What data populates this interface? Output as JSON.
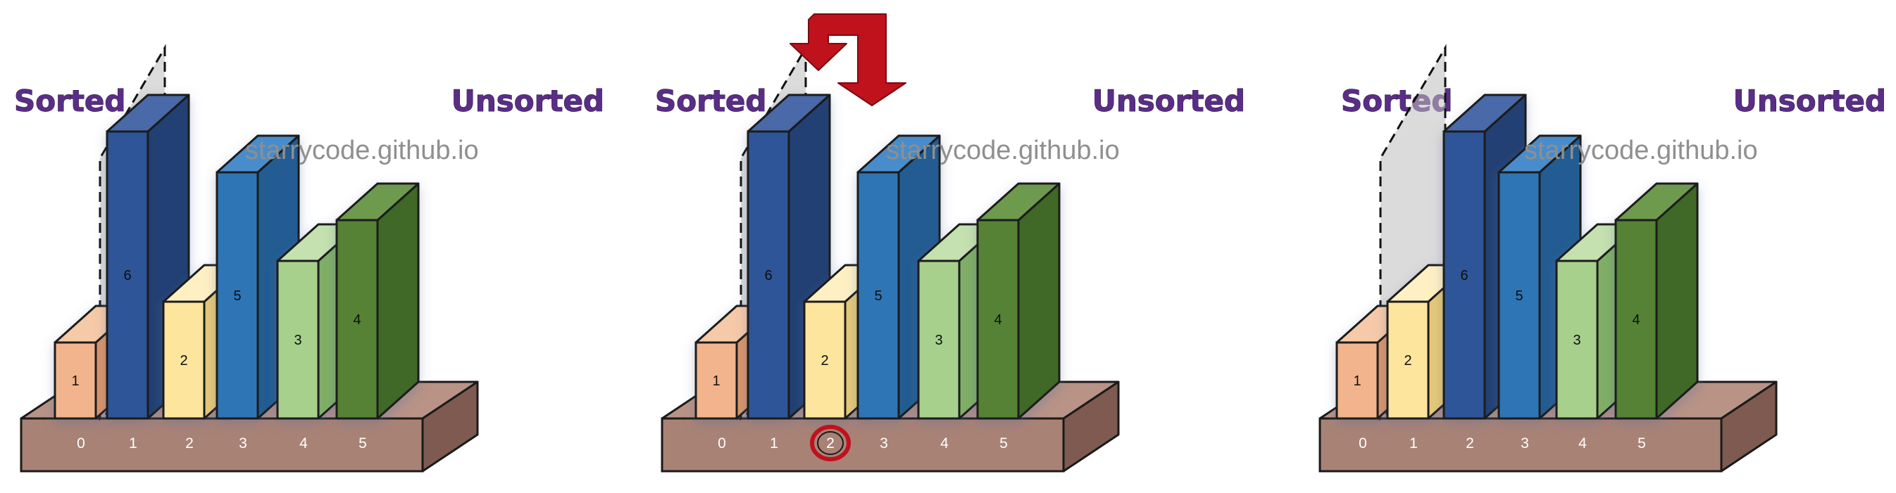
{
  "panels": [
    {
      "sorted_label": "Sorted",
      "unsorted_label": "Unsorted",
      "watermark": "starrycode.github.io",
      "bars": [
        "1",
        "6",
        "2",
        "5",
        "3",
        "4"
      ],
      "indices": [
        "0",
        "1",
        "2",
        "3",
        "4",
        "5"
      ],
      "highlight_index": null,
      "show_arrow": false
    },
    {
      "sorted_label": "Sorted",
      "unsorted_label": "Unsorted",
      "watermark": "starrycode.github.io",
      "bars": [
        "1",
        "6",
        "2",
        "5",
        "3",
        "4"
      ],
      "indices": [
        "0",
        "1",
        "2",
        "3",
        "4",
        "5"
      ],
      "highlight_index": 2,
      "show_arrow": true
    },
    {
      "sorted_label": "Sorted",
      "unsorted_label": "Unsorted",
      "watermark": "starrycode.github.io",
      "bars": [
        "1",
        "2",
        "6",
        "5",
        "3",
        "4"
      ],
      "indices": [
        "0",
        "1",
        "2",
        "3",
        "4",
        "5"
      ],
      "highlight_index": null,
      "show_arrow": false
    }
  ],
  "colors": {
    "title": "#5a2d86",
    "watermark": "#8f8f8f",
    "base_front": "#a98276",
    "base_top": "#b89386",
    "base_side": "#7e5a50",
    "highlight_ring": "#c0121c",
    "arrow": "#c0121c",
    "bar_palette": {
      "1": [
        "#f2b48c",
        "#f6c9a8",
        "#d8946a"
      ],
      "2": [
        "#fde59d",
        "#fff0c4",
        "#e6c878"
      ],
      "3": [
        "#a8d08d",
        "#c4e1af",
        "#7fae66"
      ],
      "4": [
        "#548235",
        "#6e9a4d",
        "#3f6828"
      ],
      "5": [
        "#2e75b6",
        "#4a8ccb",
        "#225c92"
      ],
      "6": [
        "#2f5597",
        "#4869a8",
        "#213f73"
      ]
    }
  }
}
